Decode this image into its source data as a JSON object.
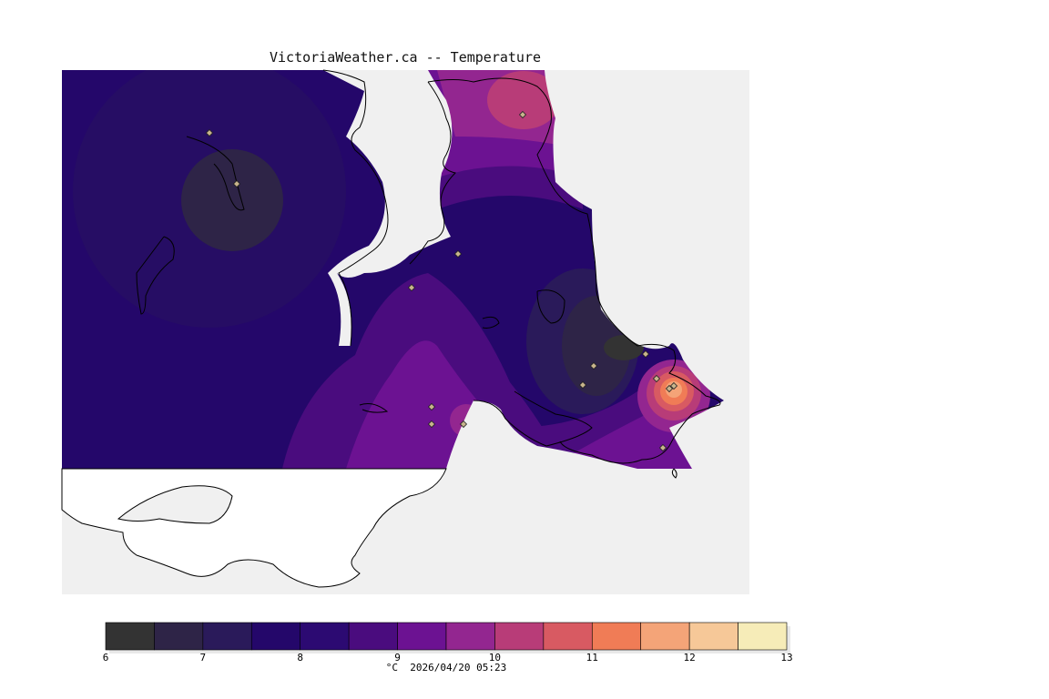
{
  "title": "VictoriaWeather.ca -- Temperature",
  "caption": "°C  2026/04/20 05:23",
  "colors": {
    "water": "#f0f0f0",
    "land_outside": "#ffffff",
    "coastline": "#000000",
    "station_marker": "#c8b48c"
  },
  "legend": {
    "min": 6,
    "max": 13,
    "step": 0.5,
    "tick_labels": [
      "6",
      "7",
      "8",
      "9",
      "10",
      "11",
      "12",
      "13"
    ],
    "bins": [
      {
        "from": 6.0,
        "to": 6.5,
        "color": "#333333"
      },
      {
        "from": 6.5,
        "to": 7.0,
        "color": "#2e2447"
      },
      {
        "from": 7.0,
        "to": 7.5,
        "color": "#2a1a5a"
      },
      {
        "from": 7.5,
        "to": 8.0,
        "color": "#24076a"
      },
      {
        "from": 8.0,
        "to": 8.5,
        "color": "#2c0a72"
      },
      {
        "from": 8.5,
        "to": 9.0,
        "color": "#4a0c7e"
      },
      {
        "from": 9.0,
        "to": 9.5,
        "color": "#6c1292"
      },
      {
        "from": 9.5,
        "to": 10.0,
        "color": "#932690"
      },
      {
        "from": 10.0,
        "to": 10.5,
        "color": "#b83c78"
      },
      {
        "from": 10.5,
        "to": 11.0,
        "color": "#d85a62"
      },
      {
        "from": 11.0,
        "to": 11.5,
        "color": "#f07c56"
      },
      {
        "from": 11.5,
        "to": 12.0,
        "color": "#f4a478"
      },
      {
        "from": 12.0,
        "to": 12.5,
        "color": "#f6c898"
      },
      {
        "from": 12.5,
        "to": 13.0,
        "color": "#f6ecb8"
      }
    ]
  },
  "stations": [
    {
      "temp": 7.2
    },
    {
      "temp": 6.8
    },
    {
      "temp": 10.3
    },
    {
      "temp": 8.2
    },
    {
      "temp": 9.0
    },
    {
      "temp": 6.4
    },
    {
      "temp": 7.0
    },
    {
      "temp": 7.1
    },
    {
      "temp": 7.3
    },
    {
      "temp": 12.4
    },
    {
      "temp": 12.1
    },
    {
      "temp": 8.6
    },
    {
      "temp": 8.9
    },
    {
      "temp": 10.1
    },
    {
      "temp": 9.6
    }
  ]
}
